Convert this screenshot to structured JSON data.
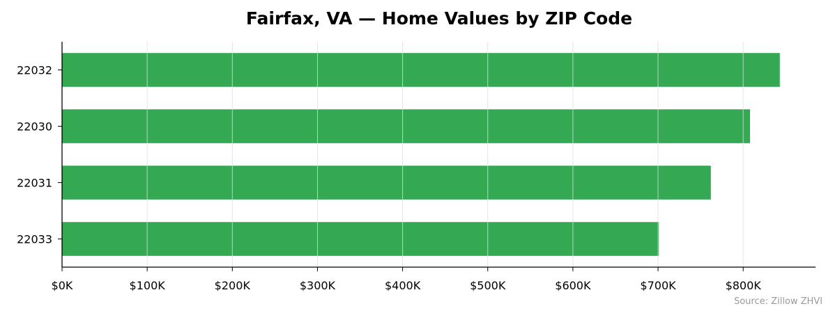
{
  "chart_data": {
    "type": "bar",
    "orientation": "horizontal",
    "title": "Fairfax, VA — Home Values by ZIP Code",
    "xlabel": "",
    "ylabel": "",
    "categories": [
      "22032",
      "22030",
      "22031",
      "22033"
    ],
    "values": [
      843000,
      808000,
      762000,
      701000
    ],
    "xlim": [
      0,
      885000
    ],
    "x_ticks": [
      0,
      100000,
      200000,
      300000,
      400000,
      500000,
      600000,
      700000,
      800000
    ],
    "x_tick_labels": [
      "$0K",
      "$100K",
      "$200K",
      "$300K",
      "$400K",
      "$500K",
      "$600K",
      "$700K",
      "$800K"
    ],
    "grid": "vertical",
    "legend": "none",
    "bar_color": "#34a853",
    "source_note": "Source: Zillow ZHVI"
  }
}
